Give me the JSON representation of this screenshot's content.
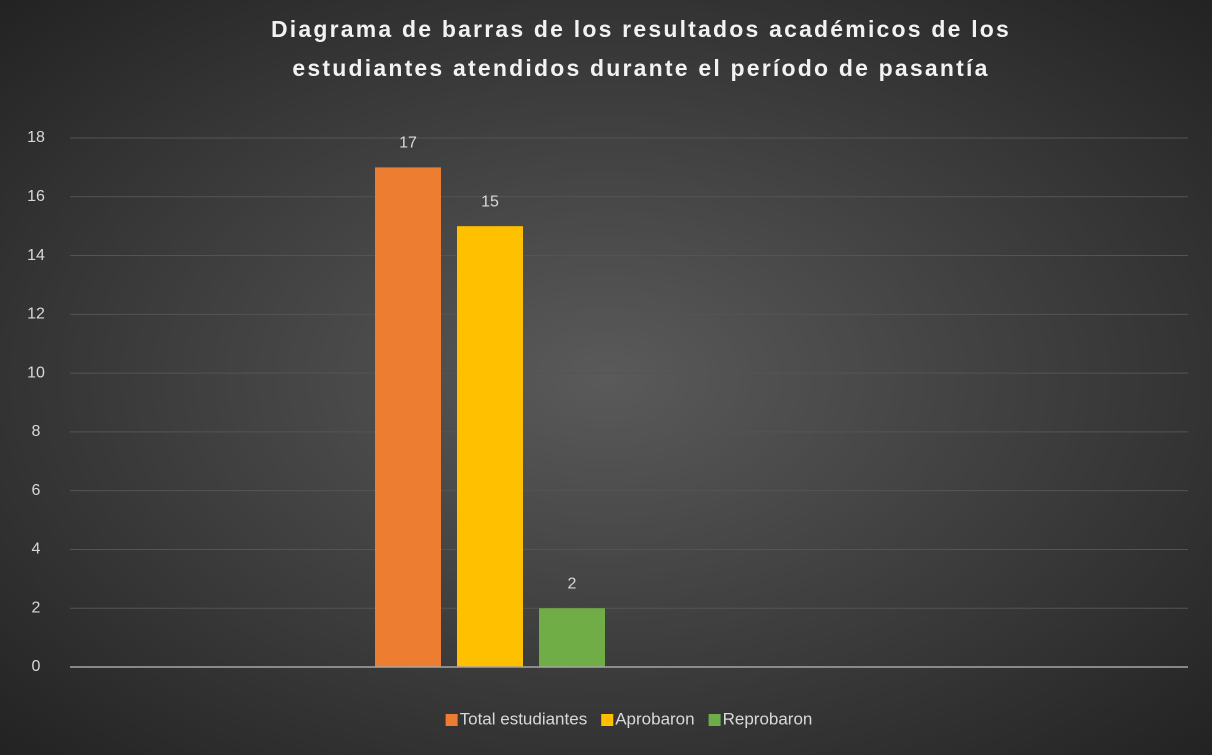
{
  "chart_data": {
    "type": "bar",
    "title": [
      "Diagrama de barras de los resultados académicos de los",
      "estudiantes atendidos durante el período de pasantía"
    ],
    "categories": [
      null
    ],
    "series": [
      {
        "name": "Total estudiantes",
        "color": "#ed7d31",
        "values": [
          17
        ]
      },
      {
        "name": "Aprobaron",
        "color": "#ffc000",
        "values": [
          15
        ]
      },
      {
        "name": "Reprobaron",
        "color": "#70ad47",
        "values": [
          2
        ]
      }
    ],
    "ylim": [
      0,
      18
    ],
    "yticks": [
      0,
      2,
      4,
      6,
      8,
      10,
      12,
      14,
      16,
      18
    ],
    "grid": true,
    "legend": "bottom"
  }
}
